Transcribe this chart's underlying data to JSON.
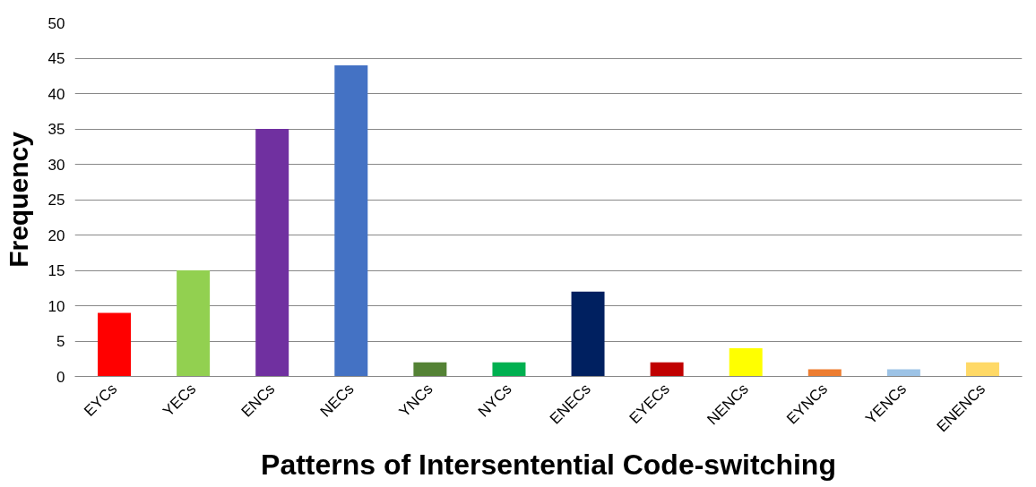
{
  "chart_data": {
    "type": "bar",
    "xlabel": "Patterns of Intersentential Code-switching",
    "ylabel": "Frequency",
    "categories": [
      "EYCs",
      "YECs",
      "ENCs",
      "NECs",
      "YNCs",
      "NYCs",
      "ENECs",
      "EYECs",
      "NENCs",
      "EYNCs",
      "YENCs",
      "ENENCs"
    ],
    "values": [
      9,
      15,
      35,
      44,
      2,
      2,
      12,
      2,
      4,
      1,
      1,
      2
    ],
    "colors": [
      "#ff0000",
      "#92d050",
      "#7030a0",
      "#4472c4",
      "#548235",
      "#00b050",
      "#002060",
      "#c00000",
      "#ffff00",
      "#ed7d31",
      "#9dc3e6",
      "#ffd966"
    ],
    "ylim": [
      0,
      50
    ],
    "yticks": [
      0,
      5,
      10,
      15,
      20,
      25,
      30,
      35,
      40,
      45,
      50
    ],
    "grid": "y"
  }
}
